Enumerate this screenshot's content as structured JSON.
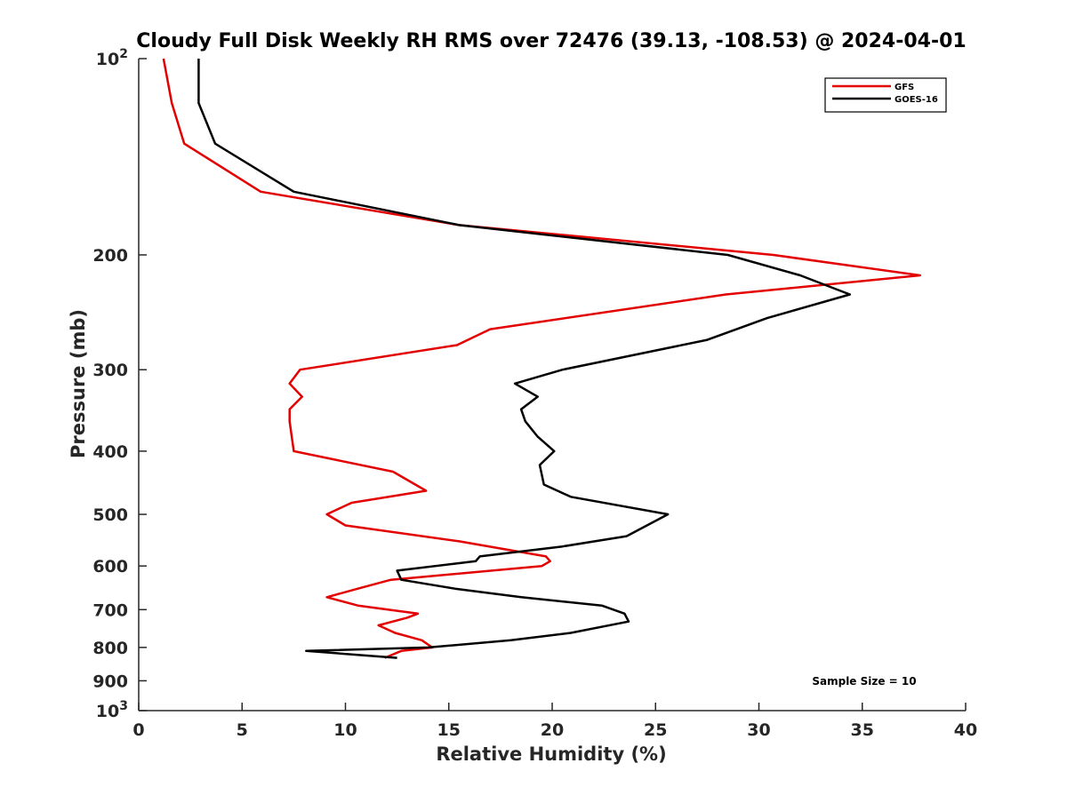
{
  "chart_data": {
    "type": "line",
    "title": "Cloudy Full Disk Weekly RH RMS over 72476 (39.13, -108.53) @ 2024-04-01",
    "xlabel": "Relative Humidity (%)",
    "ylabel": "Pressure (mb)",
    "xlim": [
      0,
      40
    ],
    "ylim": [
      100,
      1000
    ],
    "y_scale": "log",
    "y_reversed": true,
    "grid": false,
    "legend_position": "top-right",
    "x_ticks": [
      "0",
      "5",
      "10",
      "15",
      "20",
      "25",
      "30",
      "35",
      "40"
    ],
    "y_ticks": [
      {
        "value": 100,
        "base": "10",
        "exp": "2"
      },
      {
        "value": 200,
        "label": "200"
      },
      {
        "value": 300,
        "label": "300"
      },
      {
        "value": 400,
        "label": "400"
      },
      {
        "value": 500,
        "label": "500"
      },
      {
        "value": 600,
        "label": "600"
      },
      {
        "value": 700,
        "label": "700"
      },
      {
        "value": 800,
        "label": "800"
      },
      {
        "value": 900,
        "label": "900"
      },
      {
        "value": 1000,
        "base": "10",
        "exp": "3"
      }
    ],
    "annotation": "Sample Size = 10",
    "series": [
      {
        "name": "GFS",
        "color": "#e30000",
        "points": [
          [
            1.2,
            100
          ],
          [
            1.6,
            117
          ],
          [
            2.2,
            135
          ],
          [
            5.9,
            160
          ],
          [
            15.5,
            180
          ],
          [
            30.7,
            200
          ],
          [
            37.8,
            215
          ],
          [
            28.4,
            230
          ],
          [
            17.0,
            260
          ],
          [
            15.4,
            275
          ],
          [
            7.8,
            300
          ],
          [
            7.3,
            315
          ],
          [
            7.9,
            330
          ],
          [
            7.3,
            345
          ],
          [
            7.3,
            360
          ],
          [
            7.5,
            400
          ],
          [
            12.3,
            430
          ],
          [
            13.9,
            460
          ],
          [
            10.3,
            480
          ],
          [
            9.1,
            500
          ],
          [
            10.0,
            520
          ],
          [
            15.5,
            550
          ],
          [
            19.7,
            580
          ],
          [
            19.9,
            590
          ],
          [
            19.5,
            600
          ],
          [
            12.2,
            630
          ],
          [
            10.6,
            650
          ],
          [
            9.1,
            670
          ],
          [
            10.6,
            690
          ],
          [
            13.5,
            710
          ],
          [
            13.0,
            720
          ],
          [
            11.6,
            740
          ],
          [
            12.4,
            760
          ],
          [
            13.7,
            780
          ],
          [
            14.2,
            800
          ],
          [
            12.7,
            810
          ],
          [
            11.9,
            830
          ]
        ]
      },
      {
        "name": "GOES-16",
        "color": "#000000",
        "points": [
          [
            2.9,
            100
          ],
          [
            2.9,
            117
          ],
          [
            3.7,
            135
          ],
          [
            7.5,
            160
          ],
          [
            15.5,
            180
          ],
          [
            28.5,
            200
          ],
          [
            32.0,
            215
          ],
          [
            34.4,
            230
          ],
          [
            30.4,
            250
          ],
          [
            27.5,
            270
          ],
          [
            20.5,
            300
          ],
          [
            18.2,
            315
          ],
          [
            19.3,
            330
          ],
          [
            18.5,
            345
          ],
          [
            18.7,
            360
          ],
          [
            19.3,
            380
          ],
          [
            20.1,
            400
          ],
          [
            19.4,
            420
          ],
          [
            19.6,
            450
          ],
          [
            20.9,
            470
          ],
          [
            25.6,
            500
          ],
          [
            23.6,
            540
          ],
          [
            20.5,
            560
          ],
          [
            16.5,
            580
          ],
          [
            16.3,
            590
          ],
          [
            12.5,
            610
          ],
          [
            12.7,
            630
          ],
          [
            15.3,
            650
          ],
          [
            18.5,
            670
          ],
          [
            22.4,
            690
          ],
          [
            23.5,
            710
          ],
          [
            23.7,
            730
          ],
          [
            20.9,
            760
          ],
          [
            18.0,
            780
          ],
          [
            14.0,
            800
          ],
          [
            8.1,
            810
          ],
          [
            12.5,
            830
          ]
        ]
      }
    ]
  }
}
